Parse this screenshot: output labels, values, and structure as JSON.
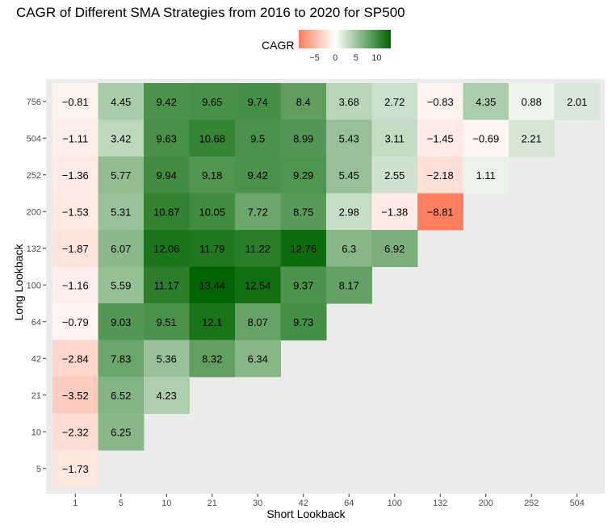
{
  "chart_data": {
    "type": "heatmap",
    "title": "CAGR of Different SMA Strategies from 2016 to 2020 for SP500",
    "xlabel": "Short Lookback",
    "ylabel": "Long Lookback",
    "x_categories": [
      "1",
      "5",
      "10",
      "21",
      "30",
      "42",
      "64",
      "100",
      "132",
      "200",
      "252",
      "504"
    ],
    "y_categories": [
      "756",
      "504",
      "252",
      "200",
      "132",
      "100",
      "64",
      "42",
      "21",
      "10",
      "5"
    ],
    "values": [
      [
        -0.81,
        4.45,
        9.42,
        9.65,
        9.74,
        8.4,
        3.68,
        2.72,
        -0.83,
        4.35,
        0.88,
        2.01
      ],
      [
        -1.11,
        3.42,
        9.63,
        10.68,
        9.5,
        8.99,
        5.43,
        3.11,
        -1.45,
        -0.69,
        2.21
      ],
      [
        -1.36,
        5.77,
        9.94,
        9.18,
        9.42,
        9.29,
        5.45,
        2.55,
        -2.18,
        1.11
      ],
      [
        -1.53,
        5.31,
        10.87,
        10.05,
        7.72,
        8.75,
        2.98,
        -1.38,
        -8.81
      ],
      [
        -1.87,
        6.07,
        12.06,
        11.79,
        11.22,
        12.76,
        6.3,
        6.92
      ],
      [
        -1.16,
        5.59,
        11.17,
        13.44,
        12.54,
        9.37,
        8.17
      ],
      [
        -0.79,
        9.03,
        9.51,
        12.1,
        8.07,
        9.73
      ],
      [
        -2.84,
        7.83,
        5.36,
        8.32,
        6.34
      ],
      [
        -3.52,
        6.52,
        4.23
      ],
      [
        -2.32,
        6.25
      ],
      [
        -1.73
      ]
    ],
    "value_labels": [
      [
        "−0.81",
        "4.45",
        "9.42",
        "9.65",
        "9.74",
        "8.4",
        "3.68",
        "2.72",
        "−0.83",
        "4.35",
        "0.88",
        "2.01"
      ],
      [
        "−1.11",
        "3.42",
        "9.63",
        "10.68",
        "9.5",
        "8.99",
        "5.43",
        "3.11",
        "−1.45",
        "−0.69",
        "2.21"
      ],
      [
        "−1.36",
        "5.77",
        "9.94",
        "9.18",
        "9.42",
        "9.29",
        "5.45",
        "2.55",
        "−2.18",
        "1.11"
      ],
      [
        "−1.53",
        "5.31",
        "10.87",
        "10.05",
        "7.72",
        "8.75",
        "2.98",
        "−1.38",
        "−8.81"
      ],
      [
        "−1.87",
        "6.07",
        "12.06",
        "11.79",
        "11.22",
        "12.76",
        "6.3",
        "6.92"
      ],
      [
        "−1.16",
        "5.59",
        "11.17",
        "13.44",
        "12.54",
        "9.37",
        "8.17"
      ],
      [
        "−0.79",
        "9.03",
        "9.51",
        "12.1",
        "8.07",
        "9.73"
      ],
      [
        "−2.84",
        "7.83",
        "5.36",
        "8.32",
        "6.34"
      ],
      [
        "−3.52",
        "6.52",
        "4.23"
      ],
      [
        "−2.32",
        "6.25"
      ],
      [
        "−1.73"
      ]
    ],
    "legend": {
      "title": "CAGR",
      "position": "top",
      "ticks": [
        -5,
        0,
        5,
        10
      ],
      "tick_labels": [
        "−5",
        "0",
        "5",
        "10"
      ],
      "range": [
        -8.81,
        13.44
      ]
    },
    "colors": {
      "low": "#ff7f5e",
      "mid": "#ffffff",
      "high": "#006400",
      "panel_background": "#ebebeb"
    },
    "grid": false
  }
}
